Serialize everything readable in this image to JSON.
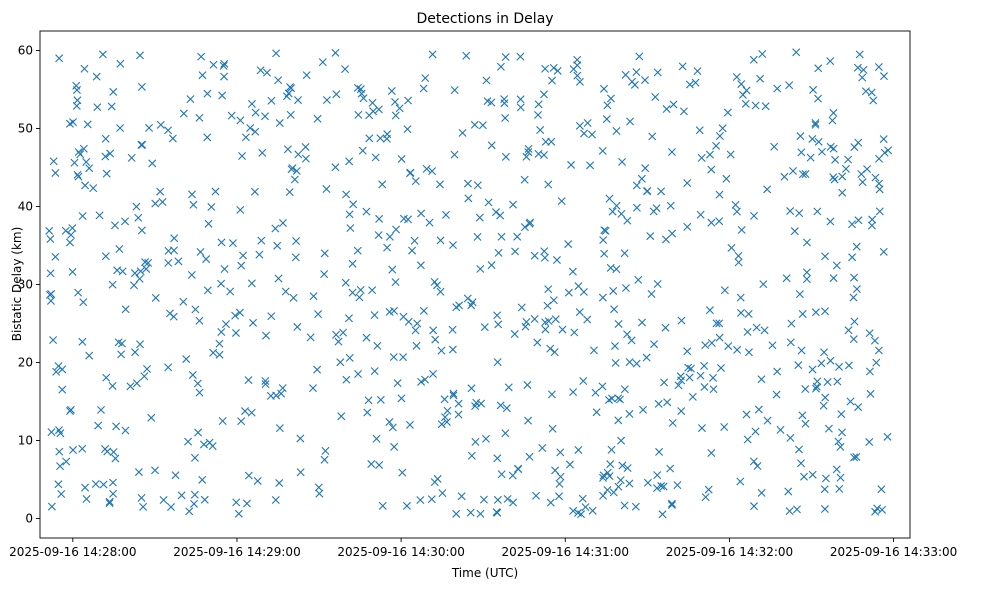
{
  "chart_data": {
    "type": "scatter",
    "title": "Detections in Delay",
    "xlabel": "Time (UTC)",
    "ylabel": "Bistatic Delay (km)",
    "x_axis_type": "time",
    "xlim": [
      "2025-09-16 14:27:48",
      "2025-09-16 14:33:06"
    ],
    "ylim": [
      -2.5,
      62.5
    ],
    "x_ticks": [
      {
        "value": "2025-09-16 14:28:00",
        "label": "2025-09-16 14:28:00"
      },
      {
        "value": "2025-09-16 14:29:00",
        "label": "2025-09-16 14:29:00"
      },
      {
        "value": "2025-09-16 14:30:00",
        "label": "2025-09-16 14:30:00"
      },
      {
        "value": "2025-09-16 14:31:00",
        "label": "2025-09-16 14:31:00"
      },
      {
        "value": "2025-09-16 14:32:00",
        "label": "2025-09-16 14:32:00"
      },
      {
        "value": "2025-09-16 14:33:00",
        "label": "2025-09-16 14:33:00"
      }
    ],
    "y_ticks": [
      0,
      10,
      20,
      30,
      40,
      50,
      60
    ],
    "grid": false,
    "marker": "x",
    "color": "#1f77b4",
    "x_start": "2025-09-16 14:27:51",
    "x_end": "2025-09-16 14:32:58",
    "y_min": 0.5,
    "y_max": 59.9,
    "point_count": 900,
    "points_sample": [
      {
        "x": "2025-09-16 14:27:52",
        "y": 27.9
      },
      {
        "x": "2025-09-16 14:27:53",
        "y": 45.8
      },
      {
        "x": "2025-09-16 14:27:55",
        "y": 59.0
      },
      {
        "x": "2025-09-16 14:28:05",
        "y": 2.5
      },
      {
        "x": "2025-09-16 14:28:11",
        "y": 59.5
      },
      {
        "x": "2025-09-16 14:29:36",
        "y": 59.7
      },
      {
        "x": "2025-09-16 14:30:29",
        "y": 0.6
      },
      {
        "x": "2025-09-16 14:31:10",
        "y": 1.0
      },
      {
        "x": "2025-09-16 14:32:54",
        "y": 1.3
      },
      {
        "x": "2025-09-16 14:32:58",
        "y": 47.2
      }
    ]
  }
}
